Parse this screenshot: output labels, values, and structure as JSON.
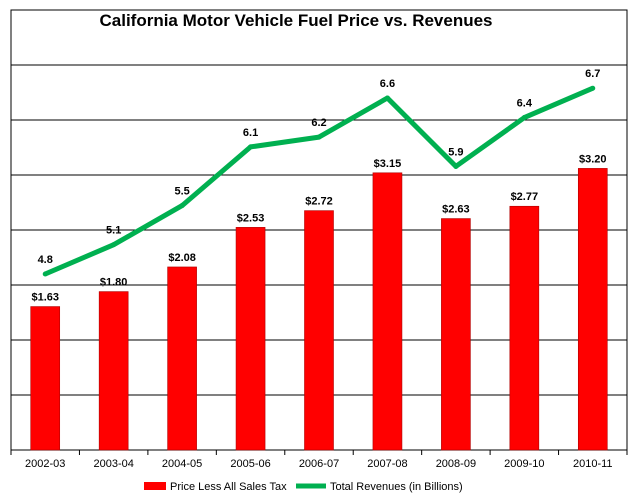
{
  "chart_data": {
    "type": "bar",
    "title": "California Motor Vehicle Fuel Price vs. Revenues",
    "categories": [
      "2002-03",
      "2003-04",
      "2004-05",
      "2005-06",
      "2006-07",
      "2007-08",
      "2008-09",
      "2009-10",
      "2010-11"
    ],
    "series": [
      {
        "name": "Price Less All Sales Tax",
        "type": "bar",
        "values": [
          1.63,
          1.8,
          2.08,
          2.53,
          2.72,
          3.15,
          2.63,
          2.77,
          3.2
        ],
        "labels": [
          "$1.63",
          "$1.80",
          "$2.08",
          "$2.53",
          "$2.72",
          "$3.15",
          "$2.63",
          "$2.77",
          "$3.20"
        ],
        "color": "#ff0000",
        "ylim": [
          0,
          5.0
        ]
      },
      {
        "name": "Total Revenues (in Billions)",
        "type": "line",
        "values": [
          4.8,
          5.1,
          5.5,
          6.1,
          6.2,
          6.6,
          5.9,
          6.4,
          6.7
        ],
        "labels": [
          "4.8",
          "5.1",
          "5.5",
          "6.1",
          "6.2",
          "6.6",
          "5.9",
          "6.4",
          "6.7"
        ],
        "color": "#00b050",
        "ylim": [
          3,
          7.5
        ]
      }
    ],
    "grid": true,
    "legend": "bottom"
  }
}
